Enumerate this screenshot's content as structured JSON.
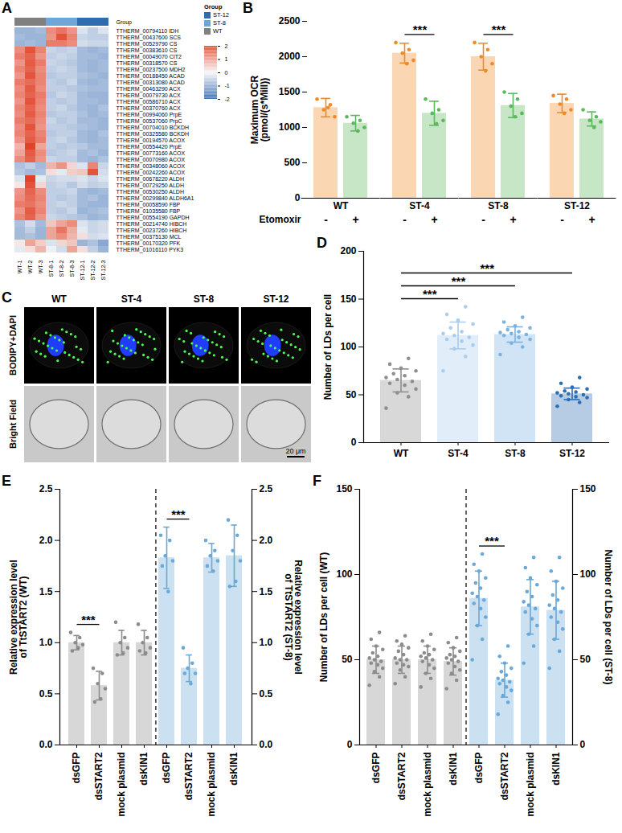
{
  "chart_data": [
    {
      "type": "heatmap",
      "panel": "A",
      "columns": [
        "WT-1",
        "WT-2",
        "WT-3",
        "ST-8-1",
        "ST-8-2",
        "ST-8-3",
        "ST-12-1",
        "ST-12-2",
        "ST-12-3"
      ],
      "rows": [
        "TTHERM_00794110 IDH",
        "TTHERM_00437600 SCS",
        "TTHERM_00529790 CS",
        "TTHERM_00383610 CS",
        "TTHERM_00049070 CIT2",
        "TTHERM_00318570 CS",
        "TTHERM_00237500 MDH2",
        "TTHERM_00188450 ACAD",
        "TTHERM_00313080 ACAD",
        "TTHERM_00463290 ACX",
        "TTHERM_00079730 ACX",
        "TTHERM_00586710 ACX",
        "TTHERM_00370760 ACX",
        "TTHERM_00994060 PrpE",
        "TTHERM_00537060 PrpC",
        "TTHERM_00704010 BCKDH",
        "TTHERM_00325580 BCKDH",
        "TTHERM_00194570 ACOX",
        "TTHERM_00554420 PrpE",
        "TTHERM_00773160 ACOX",
        "TTHERM_00070980 ACOX",
        "TTHERM_00348060 ACOX",
        "TTHERM_00242260 ACOX",
        "TTHERM_00678220 ALDH",
        "TTHERM_00729250 ALDH",
        "TTHERM_00530250 ALDH",
        "TTHERM_00299840 ALDH6A1",
        "TTHERM_00058590 FBP",
        "TTHERM_01035580 FBP",
        "TTHERM_00554190 GAPDH",
        "TTHERM_00214740 HIBCH",
        "TTHERM_00237260 HIBCH",
        "TTHERM_00375130 MCL",
        "TTHERM_00170320 PFK",
        "TTHERM_01016110 PYK3"
      ],
      "values": [
        [
          -1.0,
          -1.0,
          -0.9,
          1.3,
          1.6,
          1.2,
          -0.3,
          -0.6,
          -0.3
        ],
        [
          -0.9,
          -1.0,
          -1.0,
          1.2,
          2.0,
          1.4,
          -0.5,
          -0.6,
          -0.6
        ],
        [
          -1.0,
          -0.9,
          -1.0,
          1.5,
          1.5,
          1.3,
          -0.4,
          -0.5,
          -0.5
        ],
        [
          1.3,
          2.0,
          1.4,
          -0.5,
          -0.6,
          -0.5,
          -0.9,
          -1.0,
          -0.9
        ],
        [
          1.5,
          1.8,
          1.2,
          -0.6,
          -0.5,
          -0.6,
          -0.9,
          -0.9,
          -1.0
        ],
        [
          1.2,
          1.9,
          1.5,
          -0.5,
          -0.6,
          -0.7,
          -0.9,
          -1.0,
          -0.9
        ],
        [
          1.4,
          1.8,
          1.3,
          -0.6,
          -0.5,
          -0.6,
          -0.9,
          -1.0,
          -0.9
        ],
        [
          1.2,
          2.0,
          1.4,
          -0.7,
          -0.6,
          -0.6,
          -0.8,
          -0.9,
          -1.0
        ],
        [
          1.5,
          1.7,
          1.4,
          -0.6,
          -0.7,
          -0.5,
          -0.9,
          -1.0,
          -0.9
        ],
        [
          1.3,
          1.9,
          1.3,
          -0.6,
          -0.6,
          -0.7,
          -0.8,
          -0.9,
          -0.9
        ],
        [
          1.4,
          1.8,
          1.5,
          -0.7,
          -0.5,
          -0.6,
          -0.9,
          -1.0,
          -1.0
        ],
        [
          1.2,
          2.0,
          1.4,
          -0.6,
          -0.7,
          -0.6,
          -0.9,
          -0.9,
          -1.0
        ],
        [
          1.4,
          1.8,
          1.3,
          -0.6,
          -0.5,
          -0.7,
          -0.9,
          -1.0,
          -0.8
        ],
        [
          1.3,
          1.9,
          1.4,
          -0.7,
          -0.6,
          -0.6,
          -0.8,
          -1.0,
          -0.9
        ],
        [
          1.5,
          1.7,
          1.3,
          -0.5,
          -0.7,
          -0.6,
          -0.9,
          -0.9,
          -1.0
        ],
        [
          1.3,
          2.0,
          1.2,
          -0.6,
          -0.6,
          -0.7,
          -0.8,
          -0.9,
          -1.0
        ],
        [
          1.4,
          1.8,
          1.4,
          -0.7,
          -0.6,
          -0.6,
          -0.9,
          -1.0,
          -0.8
        ],
        [
          1.2,
          1.9,
          1.5,
          -0.6,
          -0.5,
          -0.7,
          -0.9,
          -1.0,
          -0.9
        ],
        [
          0.8,
          2.2,
          1.0,
          -0.6,
          -0.7,
          -0.6,
          -0.7,
          -0.9,
          -0.9
        ],
        [
          1.0,
          1.9,
          1.3,
          -0.7,
          -0.6,
          -0.5,
          -0.9,
          -0.8,
          -1.0
        ],
        [
          1.3,
          1.8,
          1.2,
          -0.5,
          -0.6,
          -0.6,
          -0.9,
          -1.0,
          -0.8
        ],
        [
          -0.8,
          -0.6,
          -0.9,
          0.8,
          1.2,
          0.4,
          -0.3,
          1.4,
          -0.5
        ],
        [
          -0.7,
          -0.9,
          -0.8,
          0.3,
          -0.2,
          0.5,
          0.6,
          2.0,
          -0.4
        ],
        [
          -0.3,
          2.2,
          -0.2,
          -0.5,
          -0.4,
          -0.4,
          -0.3,
          -0.5,
          -0.3
        ],
        [
          0.2,
          2.0,
          0.4,
          -0.6,
          -0.5,
          -0.7,
          -0.4,
          -0.6,
          -0.5
        ],
        [
          1.2,
          1.8,
          1.3,
          -0.6,
          -0.6,
          -0.5,
          -0.9,
          -1.0,
          -0.9
        ],
        [
          1.3,
          1.7,
          1.4,
          -0.6,
          -0.7,
          -0.6,
          -0.9,
          -0.8,
          -1.0
        ],
        [
          1.5,
          1.6,
          1.3,
          -0.6,
          -0.5,
          -0.6,
          -0.9,
          -1.0,
          -1.0
        ],
        [
          1.2,
          1.9,
          1.4,
          -0.6,
          -0.7,
          -0.5,
          -1.0,
          -0.9,
          -0.8
        ],
        [
          1.4,
          1.8,
          1.2,
          -0.5,
          -0.6,
          -0.7,
          -0.8,
          -1.0,
          -0.9
        ],
        [
          -0.8,
          -0.4,
          -0.9,
          0.6,
          1.0,
          1.3,
          -0.3,
          -0.5,
          -0.4
        ],
        [
          -0.9,
          -0.6,
          -1.0,
          1.0,
          1.6,
          0.9,
          -0.2,
          -0.5,
          -0.4
        ],
        [
          -0.9,
          -0.8,
          -1.0,
          1.0,
          1.3,
          0.8,
          0.3,
          -0.4,
          -0.3
        ],
        [
          0.2,
          1.0,
          0.5,
          -0.3,
          0.4,
          0.6,
          -1.0,
          -0.8,
          -1.2
        ],
        [
          -0.2,
          0.3,
          0.8,
          -0.1,
          -0.4,
          1.0,
          0.3,
          -0.6,
          -1.0
        ]
      ],
      "groups": {
        "title": "Group",
        "column_groups": [
          "WT",
          "WT",
          "WT",
          "ST-8",
          "ST-8",
          "ST-8",
          "ST-12",
          "ST-12",
          "ST-12"
        ],
        "items": [
          {
            "name": "ST-12",
            "color": "#2f6cb0"
          },
          {
            "name": "ST-8",
            "color": "#6ea6d8"
          },
          {
            "name": "WT",
            "color": "#808080"
          }
        ]
      },
      "colorbar": {
        "range": [
          -2,
          2
        ],
        "ticks": [
          2,
          1,
          0,
          -1,
          -2
        ],
        "colors": [
          "#3f72b8",
          "#f7f7f7",
          "#e4533b"
        ]
      }
    },
    {
      "type": "bar",
      "panel": "B",
      "categories": [
        "WT",
        "ST-4",
        "ST-8",
        "ST-12"
      ],
      "xlabel": "Etomoxir",
      "ylabel": [
        "Maximum OCR",
        "(pmol/(s*Mill))"
      ],
      "ylim": [
        0,
        2500
      ],
      "yticks": [
        0,
        500,
        1000,
        1500,
        2000,
        2500
      ],
      "series": [
        {
          "name": "-",
          "color": "#f08a24",
          "values": [
            1280,
            2050,
            2000,
            1340
          ],
          "errors": [
            130,
            140,
            190,
            130
          ],
          "points": [
            [
              1400,
              1320,
              1250,
              1150,
              1280
            ],
            [
              2200,
              2100,
              2050,
              1950,
              1900
            ],
            [
              2200,
              2100,
              2000,
              1900,
              1800
            ],
            [
              1450,
              1400,
              1330,
              1250,
              1200
            ]
          ]
        },
        {
          "name": "+",
          "color": "#5cb85c",
          "values": [
            1060,
            1200,
            1310,
            1120
          ],
          "errors": [
            110,
            170,
            170,
            100
          ],
          "points": [
            [
              1150,
              1100,
              1060,
              1000,
              950
            ],
            [
              1400,
              1250,
              1200,
              1100,
              1050
            ],
            [
              1500,
              1400,
              1300,
              1200,
              1150
            ],
            [
              1250,
              1150,
              1100,
              1080,
              1000
            ]
          ]
        }
      ],
      "significance": [
        {
          "category": "ST-4",
          "from": "-",
          "to": "+",
          "label": "***"
        },
        {
          "category": "ST-8",
          "from": "-",
          "to": "+",
          "label": "***"
        }
      ]
    },
    {
      "type": "image",
      "panel": "C",
      "columns": [
        "WT",
        "ST-4",
        "ST-8",
        "ST-12"
      ],
      "rows": [
        "BODIPY+DAPI",
        "Bright Field"
      ],
      "scale_bar": "20 μm"
    },
    {
      "type": "bar",
      "panel": "D",
      "categories": [
        "WT",
        "ST-4",
        "ST-8",
        "ST-12"
      ],
      "values": [
        65,
        112,
        113,
        51
      ],
      "errors": [
        12,
        14,
        8,
        6
      ],
      "points": [
        [
          36,
          48,
          52,
          56,
          60,
          62,
          64,
          66,
          68,
          70,
          72,
          75,
          78,
          82,
          88
        ],
        [
          75,
          90,
          98,
          102,
          106,
          108,
          110,
          112,
          114,
          116,
          120,
          124,
          128,
          134,
          142
        ],
        [
          92,
          100,
          104,
          108,
          110,
          112,
          113,
          114,
          115,
          116,
          118,
          120,
          122,
          126,
          131
        ],
        [
          38,
          42,
          45,
          47,
          48,
          49,
          50,
          51,
          52,
          53,
          54,
          56,
          58,
          62,
          68
        ]
      ],
      "colors": [
        "#8f8f8f",
        "#a8cdef",
        "#7ab3e2",
        "#2f6db3"
      ],
      "ylabel": [
        "Number of LDs per cell"
      ],
      "ylim": [
        0,
        200
      ],
      "yticks": [
        0,
        50,
        100,
        150,
        200
      ],
      "significance": [
        {
          "from": "WT",
          "to": "ST-4",
          "label": "***"
        },
        {
          "from": "WT",
          "to": "ST-8",
          "label": "***"
        },
        {
          "from": "WT",
          "to": "ST-12",
          "label": "***"
        }
      ]
    },
    {
      "type": "bar",
      "panel": "E",
      "categories": [
        "dsGFP",
        "dsSTART2",
        "mock plasmid",
        "dsKIN1"
      ],
      "ylabel": [
        "Relative expression level",
        "of TtSTART2 (WT)"
      ],
      "y2label": [
        "Relative expression level",
        "of TtSTART2 (ST-8)"
      ],
      "ylim": [
        0,
        2.5
      ],
      "yticks": [
        {
          "value": 0,
          "label": "0.0"
        },
        {
          "value": 0.5,
          "label": "0.5"
        },
        {
          "value": 1,
          "label": "1.0"
        },
        {
          "value": 1.5,
          "label": "1.5"
        },
        {
          "value": 2,
          "label": "2.0"
        },
        {
          "value": 2.5,
          "label": "2.5"
        }
      ],
      "y2lim": [
        0,
        2.5
      ],
      "y2ticks": [
        {
          "value": 0,
          "label": "0.0"
        },
        {
          "value": 0.5,
          "label": "0.5"
        },
        {
          "value": 1,
          "label": "1.0"
        },
        {
          "value": 1.5,
          "label": "1.5"
        },
        {
          "value": 2,
          "label": "2.0"
        },
        {
          "value": 2.5,
          "label": "2.5"
        }
      ],
      "series": [
        {
          "name": "WT",
          "color": "#8c8c8c",
          "values": [
            1.0,
            0.58,
            1.0,
            1.0
          ],
          "errors": [
            0.07,
            0.14,
            0.12,
            0.12
          ],
          "points": [
            [
              1.1,
              1.05,
              1.0,
              0.98,
              0.95,
              0.92
            ],
            [
              0.75,
              0.7,
              0.6,
              0.55,
              0.45,
              0.42
            ],
            [
              1.2,
              1.05,
              1.0,
              0.95,
              0.9,
              0.88
            ],
            [
              1.18,
              1.05,
              1.0,
              0.95,
              0.9,
              0.92
            ]
          ]
        },
        {
          "name": "ST-8",
          "color": "#6aa8d8",
          "axis": "y2",
          "values": [
            1.83,
            0.75,
            1.83,
            1.85
          ],
          "errors": [
            0.3,
            0.13,
            0.14,
            0.3
          ],
          "points": [
            [
              2.05,
              2.0,
              1.85,
              1.8,
              1.5,
              1.75
            ],
            [
              0.95,
              0.8,
              0.75,
              0.7,
              0.6,
              0.7
            ],
            [
              2.0,
              1.9,
              1.85,
              1.8,
              1.7,
              1.75
            ],
            [
              2.2,
              2.05,
              1.9,
              1.8,
              1.6,
              1.55
            ]
          ]
        }
      ],
      "significance": [
        {
          "series": "WT",
          "from": "dsGFP",
          "to": "dsSTART2",
          "label": "***"
        },
        {
          "series": "ST-8",
          "from": "dsGFP",
          "to": "dsSTART2",
          "label": "***"
        }
      ]
    },
    {
      "type": "bar",
      "panel": "F",
      "categories": [
        "dsGFP",
        "dsSTART2",
        "mock plasmid",
        "dsKIN1"
      ],
      "ylabel": [
        "Number of LDs per cell (WT)"
      ],
      "y2label": [
        "Number of LDs per cell (ST-8)"
      ],
      "ylim": [
        0,
        150
      ],
      "yticks": [
        0,
        50,
        100,
        150
      ],
      "y2lim": [
        0,
        150
      ],
      "y2ticks": [
        0,
        50,
        100,
        150
      ],
      "series": [
        {
          "name": "WT",
          "color": "#8c8c8c",
          "values": [
            50,
            50,
            50,
            49
          ],
          "errors": [
            8,
            8,
            8,
            8
          ],
          "points": [
            [
              35,
              40,
              43,
              45,
              47,
              48,
              49,
              50,
              51,
              52,
              54,
              56,
              58,
              62,
              66
            ],
            [
              36,
              40,
              44,
              46,
              47,
              48,
              50,
              50,
              51,
              53,
              55,
              57,
              59,
              61,
              64
            ],
            [
              34,
              39,
              42,
              45,
              47,
              49,
              50,
              51,
              52,
              53,
              54,
              56,
              58,
              61,
              65
            ],
            [
              33,
              38,
              42,
              44,
              46,
              48,
              49,
              50,
              51,
              52,
              53,
              55,
              57,
              60,
              63
            ]
          ]
        },
        {
          "name": "ST-8",
          "color": "#6aa8d8",
          "axis": "y2",
          "values": [
            86,
            38,
            81,
            79
          ],
          "errors": [
            16,
            10,
            16,
            17
          ],
          "points": [
            [
              50,
              62,
              70,
              75,
              80,
              83,
              85,
              87,
              89,
              92,
              95,
              98,
              102,
              106,
              112
            ],
            [
              18,
              25,
              29,
              32,
              34,
              36,
              37,
              38,
              39,
              41,
              43,
              45,
              48,
              52,
              58
            ],
            [
              48,
              58,
              65,
              70,
              74,
              78,
              80,
              82,
              84,
              87,
              90,
              94,
              98,
              104,
              110
            ],
            [
              45,
              55,
              62,
              68,
              72,
              75,
              78,
              80,
              82,
              85,
              88,
              92,
              96,
              102,
              110
            ]
          ]
        }
      ],
      "significance": [
        {
          "series": "ST-8",
          "from": "dsGFP",
          "to": "dsSTART2",
          "label": "***"
        }
      ]
    }
  ]
}
